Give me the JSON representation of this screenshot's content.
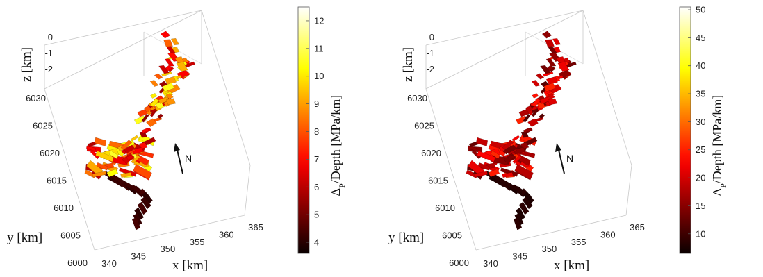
{
  "chart_data": [
    {
      "type": "3d-surface",
      "title": "",
      "xlabel": "x [km]",
      "ylabel": "y [km]",
      "zlabel": "z [km]",
      "x_ticks": [
        "340",
        "345",
        "350",
        "355",
        "360",
        "365"
      ],
      "y_ticks": [
        "6000",
        "6005",
        "6010",
        "6015",
        "6020",
        "6025",
        "6030"
      ],
      "z_ticks": [
        "0",
        "-1",
        "-2"
      ],
      "xlim": [
        340,
        365
      ],
      "ylim": [
        6000,
        6030
      ],
      "zlim": [
        -2.5,
        0
      ],
      "north_label": "N",
      "colormap": "hot",
      "colorbar": {
        "label": "Δ_P/Depth [MPa/km]",
        "label_prefix": "Δ",
        "label_sub": "P",
        "label_suffix": "/Depth [MPa/km]",
        "ticks": [
          "4",
          "5",
          "6",
          "7",
          "8",
          "9",
          "10",
          "11",
          "12"
        ],
        "range": [
          3.6,
          12.5
        ],
        "direction": "dark-low-bright-high"
      }
    },
    {
      "type": "3d-surface",
      "title": "",
      "xlabel": "x [km]",
      "ylabel": "y [km]",
      "zlabel": "z [km]",
      "x_ticks": [
        "340",
        "345",
        "350",
        "355",
        "360",
        "365"
      ],
      "y_ticks": [
        "6000",
        "6005",
        "6010",
        "6015",
        "6020",
        "6025",
        "6030"
      ],
      "z_ticks": [
        "0",
        "-1",
        "-2"
      ],
      "xlim": [
        340,
        365
      ],
      "ylim": [
        6000,
        6030
      ],
      "zlim": [
        -2.5,
        0
      ],
      "north_label": "N",
      "colormap": "hot",
      "colorbar": {
        "label": "Δ_P/Depth [MPa/km]",
        "label_prefix": "Δ",
        "label_sub": "P",
        "label_suffix": "/Depth [MPa/km]",
        "ticks": [
          "10",
          "15",
          "20",
          "25",
          "30",
          "35",
          "40",
          "45",
          "50"
        ],
        "range": [
          6.5,
          50.5
        ],
        "direction": "dark-low-bright-high"
      }
    }
  ]
}
